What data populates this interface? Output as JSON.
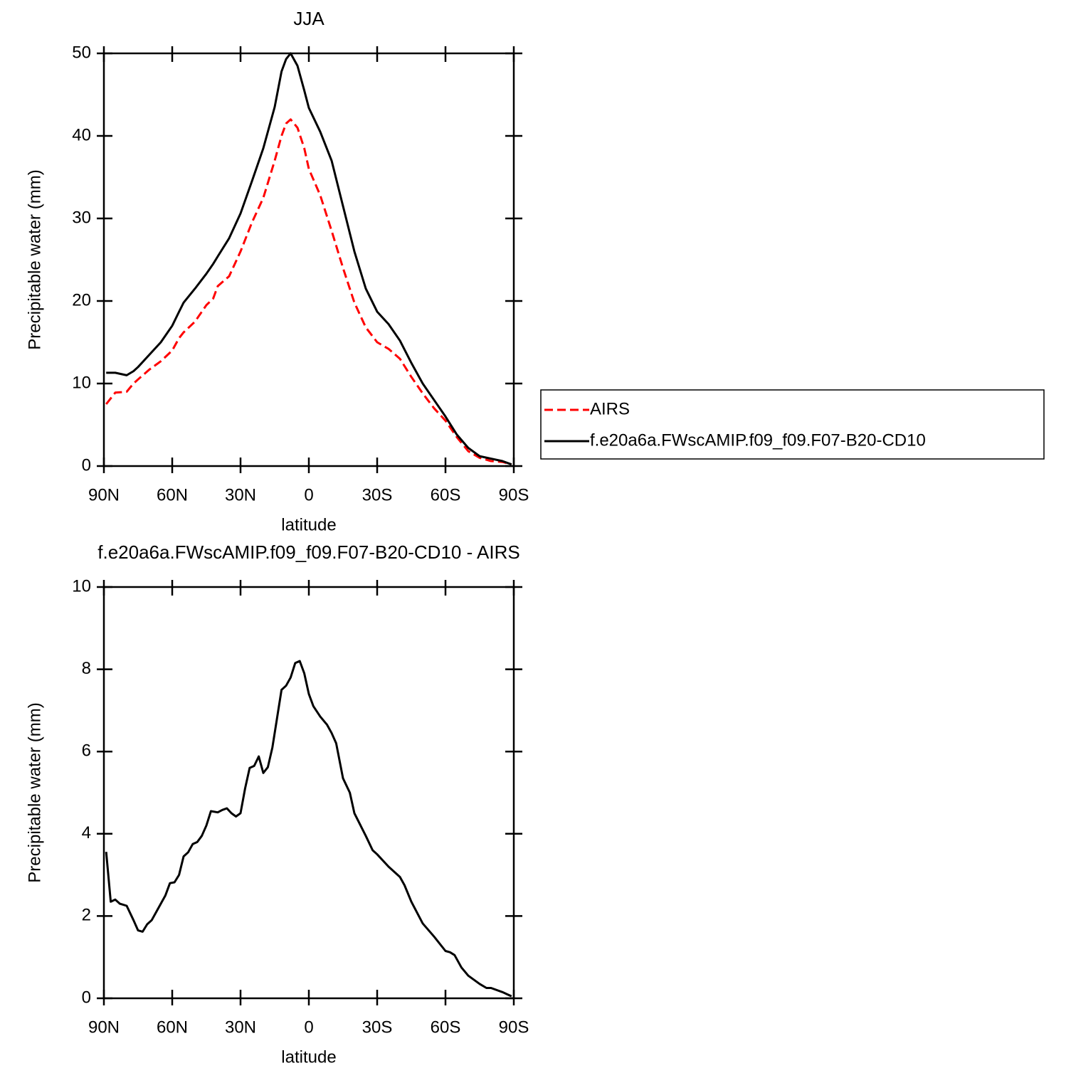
{
  "chart_data": [
    {
      "type": "line",
      "title": "JJA",
      "xlabel": "latitude",
      "ylabel": "Precipitable water (mm)",
      "x": [
        89,
        85,
        80,
        77,
        75,
        70,
        65,
        60,
        57,
        55,
        50,
        45,
        42,
        40,
        35,
        30,
        25,
        20,
        15,
        12,
        10,
        8,
        5,
        2,
        0,
        -5,
        -10,
        -15,
        -20,
        -25,
        -30,
        -35,
        -40,
        -45,
        -50,
        -55,
        -60,
        -65,
        -70,
        -75,
        -80,
        -85,
        -89
      ],
      "series": [
        {
          "name": "AIRS",
          "color": "#ff0000",
          "dashed": true,
          "values": [
            7.5,
            8.9,
            9.0,
            10.0,
            10.5,
            11.7,
            12.7,
            14.0,
            15.5,
            16.2,
            17.5,
            19.5,
            20.3,
            21.8,
            23.0,
            26.0,
            29.5,
            32.5,
            37.0,
            40.0,
            41.5,
            42.0,
            41.0,
            38.5,
            36.0,
            32.8,
            28.5,
            24.0,
            19.8,
            16.8,
            15.0,
            14.2,
            13.0,
            10.8,
            8.8,
            7.0,
            5.5,
            3.5,
            1.8,
            1.0,
            0.6,
            0.5,
            0.2
          ]
        },
        {
          "name": "f.e20a6a.FWscAMIP.f09_f09.F07-B20-CD10",
          "color": "#000000",
          "dashed": false,
          "values": [
            11.3,
            11.3,
            11.0,
            11.5,
            12.0,
            13.5,
            15.0,
            17.0,
            18.7,
            19.8,
            21.5,
            23.3,
            24.5,
            25.4,
            27.6,
            30.6,
            34.5,
            38.5,
            43.5,
            47.8,
            49.3,
            50.0,
            48.5,
            45.5,
            43.4,
            40.5,
            37.0,
            31.5,
            26.0,
            21.5,
            18.7,
            17.2,
            15.2,
            12.5,
            10.0,
            8.0,
            6.0,
            3.8,
            2.2,
            1.2,
            0.9,
            0.6,
            0.2
          ]
        }
      ],
      "xlim": [
        90,
        -90
      ],
      "xticks": [
        {
          "value": 90,
          "label": "90N"
        },
        {
          "value": 60,
          "label": "60N"
        },
        {
          "value": 30,
          "label": "30N"
        },
        0,
        {
          "value": -30,
          "label": "30S"
        },
        {
          "value": -60,
          "label": "60S"
        },
        {
          "value": -90,
          "label": "90S"
        }
      ],
      "ylim": [
        0,
        50
      ],
      "yticks": [
        0,
        10,
        20,
        30,
        40,
        50
      ],
      "legend": "right"
    },
    {
      "type": "line",
      "title": "f.e20a6a.FWscAMIP.f09_f09.F07-B20-CD10  -  AIRS",
      "xlabel": "latitude",
      "ylabel": "Precipitable water (mm)",
      "x": [
        89,
        87,
        85,
        83,
        80,
        77,
        75,
        73,
        71,
        69,
        67,
        63,
        61,
        59,
        57,
        55,
        53,
        51,
        49,
        47,
        45,
        43,
        40,
        38,
        36,
        34,
        32,
        30,
        28,
        26,
        24,
        22,
        20,
        18,
        16,
        14,
        12,
        10,
        8,
        6,
        4,
        2,
        0,
        -2,
        -5,
        -8,
        -10,
        -12,
        -15,
        -18,
        -20,
        -25,
        -28,
        -30,
        -35,
        -40,
        -42,
        -45,
        -50,
        -55,
        -60,
        -62,
        -64,
        -67,
        -70,
        -75,
        -78,
        -80,
        -85,
        -87,
        -89
      ],
      "series": [
        {
          "color": "#000000",
          "dashed": false,
          "values": [
            3.56,
            2.35,
            2.4,
            2.3,
            2.25,
            1.9,
            1.65,
            1.62,
            1.8,
            1.9,
            2.1,
            2.5,
            2.8,
            2.82,
            3.0,
            3.45,
            3.55,
            3.75,
            3.8,
            3.95,
            4.2,
            4.55,
            4.52,
            4.58,
            4.62,
            4.5,
            4.42,
            4.5,
            5.1,
            5.6,
            5.65,
            5.88,
            5.48,
            5.62,
            6.1,
            6.8,
            7.5,
            7.6,
            7.8,
            8.15,
            8.2,
            7.9,
            7.4,
            7.1,
            6.85,
            6.65,
            6.45,
            6.2,
            5.35,
            5.0,
            4.5,
            3.95,
            3.6,
            3.5,
            3.2,
            2.95,
            2.75,
            2.35,
            1.82,
            1.5,
            1.15,
            1.12,
            1.05,
            0.75,
            0.55,
            0.35,
            0.25,
            0.25,
            0.15,
            0.1,
            0.05
          ]
        }
      ],
      "xlim": [
        90,
        -90
      ],
      "xticks": [
        {
          "value": 90,
          "label": "90N"
        },
        {
          "value": 60,
          "label": "60N"
        },
        {
          "value": 30,
          "label": "30N"
        },
        0,
        {
          "value": -30,
          "label": "30S"
        },
        {
          "value": -60,
          "label": "60S"
        },
        {
          "value": -90,
          "label": "90S"
        }
      ],
      "ylim": [
        0,
        10
      ],
      "yticks": [
        0,
        2,
        4,
        6,
        8,
        10
      ]
    }
  ]
}
